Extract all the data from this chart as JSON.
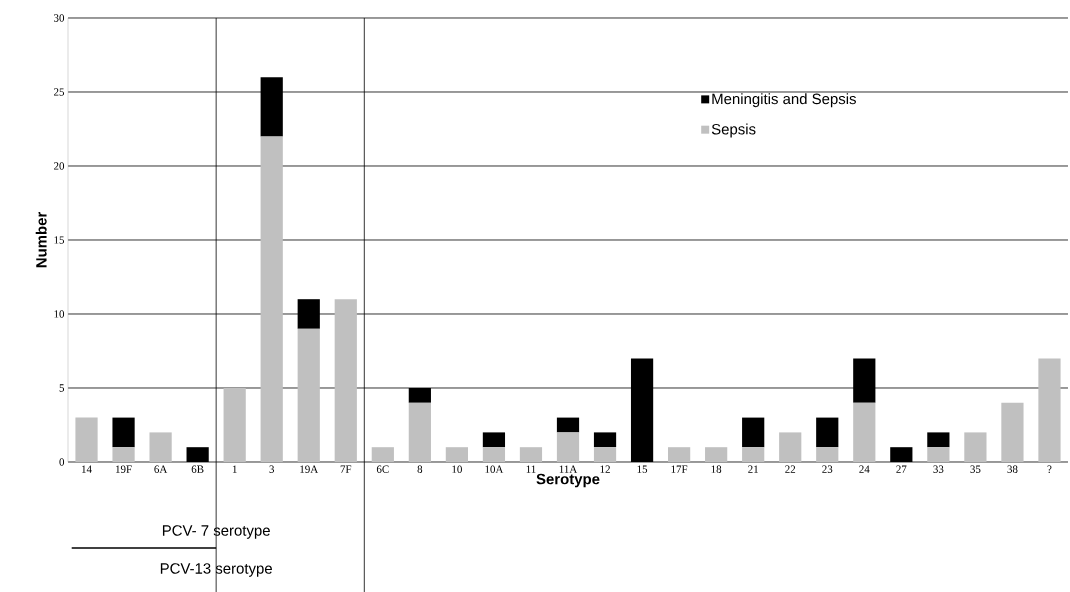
{
  "chart_data": {
    "type": "bar",
    "stacked": true,
    "xlabel": "Serotype",
    "ylabel": "Number",
    "categories": [
      "14",
      "19F",
      "6A",
      "6B",
      "1",
      "3",
      "19A",
      "7F",
      "6C",
      "8",
      "10",
      "10A",
      "11",
      "11A",
      "12",
      "15",
      "17F",
      "18",
      "21",
      "22",
      "23",
      "24",
      "27",
      "33",
      "35",
      "38",
      "?"
    ],
    "series": [
      {
        "name": "Sepsis",
        "color": "#c0c0c0",
        "values": [
          3,
          1,
          2,
          0,
          5,
          22,
          9,
          11,
          1,
          4,
          1,
          1,
          1,
          2,
          1,
          0,
          1,
          1,
          1,
          2,
          1,
          4,
          0,
          1,
          2,
          4,
          7
        ]
      },
      {
        "name": "Meningitis and Sepsis",
        "color": "#000000",
        "values": [
          0,
          2,
          0,
          1,
          0,
          4,
          2,
          0,
          0,
          1,
          0,
          1,
          0,
          1,
          1,
          7,
          0,
          0,
          2,
          0,
          2,
          3,
          1,
          1,
          0,
          0,
          0
        ]
      }
    ],
    "ylim": [
      0,
      30
    ],
    "yticks": [
      0,
      5,
      10,
      15,
      20,
      25,
      30
    ],
    "grid": "y",
    "legend": "top right",
    "annotations": [
      "PCV- 7 serotype",
      "PCV-13 serotype"
    ]
  }
}
